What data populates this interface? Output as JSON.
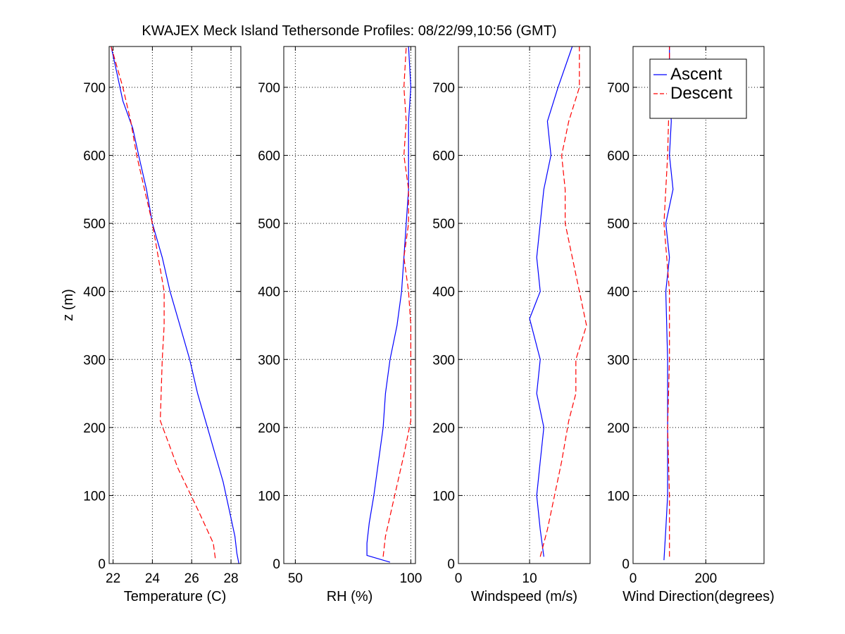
{
  "figure": {
    "title": "KWAJEX Meck Island Tethersonde Profiles: 08/22/99,10:56 (GMT)"
  },
  "legend": {
    "panel": "Wind Direction(degrees)",
    "location": "top-right",
    "entries": [
      {
        "label": "Ascent",
        "color": "#0000ff",
        "style": "solid"
      },
      {
        "label": "Descent",
        "color": "#ff0000",
        "style": "dashed"
      }
    ]
  },
  "chart_data": [
    {
      "type": "line",
      "xlabel": "Temperature (C)",
      "ylabel": "z (m)",
      "xlim": [
        21.8,
        28.5
      ],
      "ylim": [
        0,
        760
      ],
      "xticks": [
        22,
        24,
        26,
        28
      ],
      "yticks": [
        0,
        100,
        200,
        300,
        400,
        500,
        600,
        700
      ],
      "grid": true,
      "series": [
        {
          "name": "Ascent",
          "color": "#0000ff",
          "style": "solid",
          "points": [
            [
              28.4,
              0
            ],
            [
              28.3,
              15
            ],
            [
              28.2,
              40
            ],
            [
              27.9,
              80
            ],
            [
              27.6,
              120
            ],
            [
              27.2,
              160
            ],
            [
              26.8,
              200
            ],
            [
              26.3,
              250
            ],
            [
              25.9,
              300
            ],
            [
              25.4,
              350
            ],
            [
              24.9,
              400
            ],
            [
              24.5,
              450
            ],
            [
              24.0,
              500
            ],
            [
              23.7,
              550
            ],
            [
              23.3,
              600
            ],
            [
              23.0,
              640
            ],
            [
              22.5,
              680
            ],
            [
              22.2,
              720
            ],
            [
              21.9,
              760
            ]
          ]
        },
        {
          "name": "Descent",
          "color": "#ff0000",
          "style": "dashed",
          "points": [
            [
              27.2,
              8
            ],
            [
              27.1,
              30
            ],
            [
              26.3,
              80
            ],
            [
              25.3,
              140
            ],
            [
              24.4,
              210
            ],
            [
              24.5,
              300
            ],
            [
              24.6,
              350
            ],
            [
              24.6,
              400
            ],
            [
              24.3,
              450
            ],
            [
              24.0,
              500
            ],
            [
              23.6,
              550
            ],
            [
              23.2,
              600
            ],
            [
              22.9,
              650
            ],
            [
              22.5,
              700
            ],
            [
              21.9,
              760
            ]
          ]
        }
      ]
    },
    {
      "type": "line",
      "xlabel": "RH (%)",
      "xlim": [
        45,
        102
      ],
      "ylim": [
        0,
        760
      ],
      "xticks": [
        50,
        100
      ],
      "yticks": [
        0,
        100,
        200,
        300,
        400,
        500,
        600,
        700
      ],
      "grid": true,
      "series": [
        {
          "name": "Ascent",
          "color": "#0000ff",
          "style": "solid",
          "points": [
            [
              91,
              2
            ],
            [
              81,
              12
            ],
            [
              81,
              30
            ],
            [
              82,
              60
            ],
            [
              84,
              100
            ],
            [
              86,
              150
            ],
            [
              88,
              200
            ],
            [
              89,
              250
            ],
            [
              91,
              300
            ],
            [
              94,
              350
            ],
            [
              96,
              400
            ],
            [
              97,
              450
            ],
            [
              98,
              500
            ],
            [
              99,
              550
            ],
            [
              99,
              600
            ],
            [
              99,
              650
            ],
            [
              100,
              700
            ],
            [
              99,
              760
            ]
          ]
        },
        {
          "name": "Descent",
          "color": "#ff0000",
          "style": "dashed",
          "points": [
            [
              88,
              10
            ],
            [
              89,
              40
            ],
            [
              93,
              100
            ],
            [
              97,
              160
            ],
            [
              100,
              210
            ],
            [
              100,
              300
            ],
            [
              100,
              350
            ],
            [
              99,
              400
            ],
            [
              97,
              450
            ],
            [
              99,
              500
            ],
            [
              99,
              550
            ],
            [
              97,
              600
            ],
            [
              98,
              650
            ],
            [
              97,
              700
            ],
            [
              98,
              760
            ]
          ]
        }
      ]
    },
    {
      "type": "line",
      "xlabel": "Windspeed (m/s)",
      "xlim": [
        0,
        18.5
      ],
      "ylim": [
        0,
        760
      ],
      "xticks": [
        0,
        10
      ],
      "yticks": [
        0,
        100,
        200,
        300,
        400,
        500,
        600,
        700
      ],
      "grid": true,
      "series": [
        {
          "name": "Ascent",
          "color": "#0000ff",
          "style": "solid",
          "points": [
            [
              12,
              10
            ],
            [
              11.5,
              50
            ],
            [
              11,
              100
            ],
            [
              11.5,
              150
            ],
            [
              12,
              200
            ],
            [
              11,
              250
            ],
            [
              11.5,
              300
            ],
            [
              10,
              360
            ],
            [
              11.5,
              400
            ],
            [
              11,
              450
            ],
            [
              11.5,
              500
            ],
            [
              12,
              550
            ],
            [
              13,
              600
            ],
            [
              12.5,
              650
            ],
            [
              14,
              700
            ],
            [
              16,
              760
            ]
          ]
        },
        {
          "name": "Descent",
          "color": "#ff0000",
          "style": "dashed",
          "points": [
            [
              11.5,
              10
            ],
            [
              12.5,
              50
            ],
            [
              13.5,
              100
            ],
            [
              14.5,
              150
            ],
            [
              15.5,
              210
            ],
            [
              16.5,
              250
            ],
            [
              16.5,
              300
            ],
            [
              18,
              350
            ],
            [
              17,
              400
            ],
            [
              16,
              450
            ],
            [
              15,
              500
            ],
            [
              15,
              550
            ],
            [
              14.5,
              600
            ],
            [
              15.5,
              650
            ],
            [
              17,
              700
            ],
            [
              17,
              760
            ]
          ]
        }
      ]
    },
    {
      "type": "line",
      "xlabel": "Wind Direction(degrees)",
      "xlim": [
        0,
        360
      ],
      "ylim": [
        0,
        760
      ],
      "xticks": [
        0,
        200
      ],
      "yticks": [
        0,
        100,
        200,
        300,
        400,
        500,
        600,
        700
      ],
      "grid": true,
      "series": [
        {
          "name": "Ascent",
          "color": "#0000ff",
          "style": "solid",
          "points": [
            [
              85,
              5
            ],
            [
              90,
              50
            ],
            [
              95,
              100
            ],
            [
              95,
              200
            ],
            [
              95,
              300
            ],
            [
              90,
              400
            ],
            [
              100,
              450
            ],
            [
              90,
              500
            ],
            [
              110,
              550
            ],
            [
              100,
              600
            ],
            [
              105,
              650
            ],
            [
              100,
              700
            ],
            [
              100,
              760
            ]
          ]
        },
        {
          "name": "Descent",
          "color": "#ff0000",
          "style": "dashed",
          "points": [
            [
              100,
              10
            ],
            [
              100,
              100
            ],
            [
              95,
              200
            ],
            [
              100,
              300
            ],
            [
              100,
              400
            ],
            [
              85,
              500
            ],
            [
              95,
              600
            ],
            [
              100,
              700
            ],
            [
              100,
              760
            ]
          ]
        }
      ]
    }
  ]
}
